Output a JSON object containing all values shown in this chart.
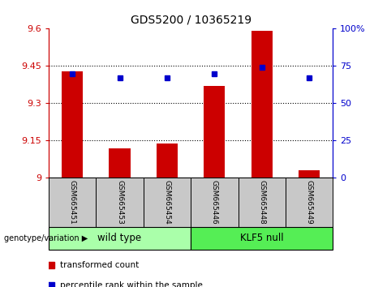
{
  "title": "GDS5200 / 10365219",
  "categories": [
    "GSM665451",
    "GSM665453",
    "GSM665454",
    "GSM665446",
    "GSM665448",
    "GSM665449"
  ],
  "red_values": [
    9.43,
    9.12,
    9.14,
    9.37,
    9.59,
    9.03
  ],
  "blue_values": [
    70,
    67,
    67,
    70,
    74,
    67
  ],
  "ylim_left": [
    9.0,
    9.6
  ],
  "ylim_right": [
    0,
    100
  ],
  "yticks_left": [
    9.0,
    9.15,
    9.3,
    9.45,
    9.6
  ],
  "ytick_labels_left": [
    "9",
    "9.15",
    "9.3",
    "9.45",
    "9.6"
  ],
  "yticks_right": [
    0,
    25,
    50,
    75,
    100
  ],
  "ytick_labels_right": [
    "0",
    "25",
    "50",
    "75",
    "100%"
  ],
  "group_labels": [
    "wild type",
    "KLF5 null"
  ],
  "group_colors": [
    "#AAFFAA",
    "#55EE55"
  ],
  "group_ranges": [
    [
      0,
      3
    ],
    [
      3,
      6
    ]
  ],
  "bar_color": "#CC0000",
  "dot_color": "#0000CC",
  "bg_color": "#C8C8C8",
  "legend_red": "transformed count",
  "legend_blue": "percentile rank within the sample",
  "bar_width": 0.45,
  "title_fontsize": 10
}
